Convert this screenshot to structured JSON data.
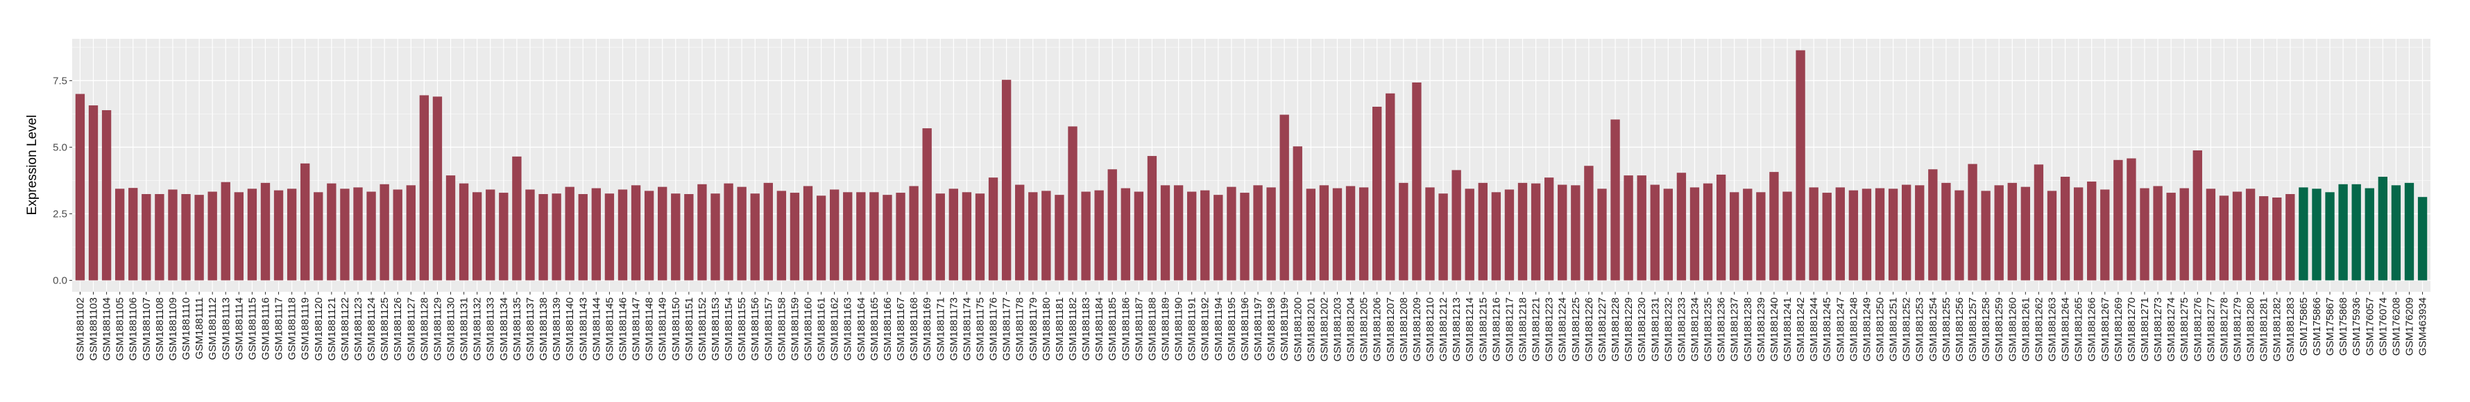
{
  "chart_data": {
    "type": "bar",
    "title": "",
    "xlabel": "",
    "ylabel": "Expression Level",
    "ylim": [
      -0.43,
      9.07
    ],
    "yticks": [
      0.0,
      2.5,
      5.0,
      7.5
    ],
    "ytick_labels": [
      "0.0",
      "2.5",
      "5.0",
      "7.5"
    ],
    "grid": true,
    "legend": "none",
    "background": "#EBEBEB",
    "series": [
      {
        "color": "#9A4150",
        "categories": [
          "GSM1881102",
          "GSM1881103",
          "GSM1881104",
          "GSM1881105",
          "GSM1881106",
          "GSM1881107",
          "GSM1881108",
          "GSM1881109",
          "GSM1881110",
          "GSM1881111",
          "GSM1881112",
          "GSM1881113",
          "GSM1881114",
          "GSM1881115",
          "GSM1881116",
          "GSM1881117",
          "GSM1881118",
          "GSM1881119",
          "GSM1881120",
          "GSM1881121",
          "GSM1881122",
          "GSM1881123",
          "GSM1881124",
          "GSM1881125",
          "GSM1881126",
          "GSM1881127",
          "GSM1881128",
          "GSM1881129",
          "GSM1881130",
          "GSM1881131",
          "GSM1881132",
          "GSM1881133",
          "GSM1881134",
          "GSM1881135",
          "GSM1881137",
          "GSM1881138",
          "GSM1881139",
          "GSM1881140",
          "GSM1881143",
          "GSM1881144",
          "GSM1881145",
          "GSM1881146",
          "GSM1881147",
          "GSM1881148",
          "GSM1881149",
          "GSM1881150",
          "GSM1881151",
          "GSM1881152",
          "GSM1881153",
          "GSM1881154",
          "GSM1881155",
          "GSM1881156",
          "GSM1881157",
          "GSM1881158",
          "GSM1881159",
          "GSM1881160",
          "GSM1881161",
          "GSM1881162",
          "GSM1881163",
          "GSM1881164",
          "GSM1881165",
          "GSM1881166",
          "GSM1881167",
          "GSM1881168",
          "GSM1881169",
          "GSM1881171",
          "GSM1881173",
          "GSM1881174",
          "GSM1881175",
          "GSM1881176",
          "GSM1881177",
          "GSM1881178",
          "GSM1881179",
          "GSM1881180",
          "GSM1881181",
          "GSM1881182",
          "GSM1881183",
          "GSM1881184",
          "GSM1881185",
          "GSM1881186",
          "GSM1881187",
          "GSM1881188",
          "GSM1881189",
          "GSM1881190",
          "GSM1881191",
          "GSM1881192",
          "GSM1881194",
          "GSM1881195",
          "GSM1881196",
          "GSM1881197",
          "GSM1881198",
          "GSM1881199",
          "GSM1881200",
          "GSM1881201",
          "GSM1881202",
          "GSM1881203",
          "GSM1881204",
          "GSM1881205",
          "GSM1881206",
          "GSM1881207",
          "GSM1881208",
          "GSM1881209",
          "GSM1881210",
          "GSM1881212",
          "GSM1881213",
          "GSM1881214",
          "GSM1881215",
          "GSM1881216",
          "GSM1881217",
          "GSM1881218",
          "GSM1881221",
          "GSM1881223",
          "GSM1881224",
          "GSM1881225",
          "GSM1881226",
          "GSM1881227",
          "GSM1881228",
          "GSM1881229",
          "GSM1881230",
          "GSM1881231",
          "GSM1881232",
          "GSM1881233",
          "GSM1881234",
          "GSM1881235",
          "GSM1881236",
          "GSM1881237",
          "GSM1881238",
          "GSM1881239",
          "GSM1881240",
          "GSM1881241",
          "GSM1881242",
          "GSM1881244",
          "GSM1881245",
          "GSM1881247",
          "GSM1881248",
          "GSM1881249",
          "GSM1881250",
          "GSM1881251",
          "GSM1881252",
          "GSM1881253",
          "GSM1881254",
          "GSM1881255",
          "GSM1881256",
          "GSM1881257",
          "GSM1881258",
          "GSM1881259",
          "GSM1881260",
          "GSM1881261",
          "GSM1881262",
          "GSM1881263",
          "GSM1881264",
          "GSM1881265",
          "GSM1881266",
          "GSM1881267",
          "GSM1881269",
          "GSM1881270",
          "GSM1881271",
          "GSM1881273",
          "GSM1881274",
          "GSM1881275",
          "GSM1881276",
          "GSM1881277",
          "GSM1881278",
          "GSM1881279",
          "GSM1881280",
          "GSM1881281",
          "GSM1881282",
          "GSM1881283"
        ],
        "values": [
          7.0,
          6.57,
          6.39,
          3.44,
          3.47,
          3.24,
          3.24,
          3.41,
          3.24,
          3.21,
          3.33,
          3.69,
          3.31,
          3.44,
          3.66,
          3.38,
          3.44,
          4.39,
          3.31,
          3.64,
          3.44,
          3.49,
          3.33,
          3.61,
          3.41,
          3.57,
          6.95,
          6.9,
          3.94,
          3.64,
          3.31,
          3.41,
          3.29,
          4.65,
          3.41,
          3.24,
          3.26,
          3.51,
          3.24,
          3.46,
          3.26,
          3.41,
          3.57,
          3.36,
          3.51,
          3.26,
          3.24,
          3.61,
          3.26,
          3.64,
          3.51,
          3.26,
          3.66,
          3.36,
          3.29,
          3.54,
          3.18,
          3.41,
          3.31,
          3.31,
          3.31,
          3.21,
          3.29,
          3.54,
          5.71,
          3.26,
          3.44,
          3.31,
          3.26,
          3.86,
          7.53,
          3.59,
          3.31,
          3.36,
          3.21,
          5.78,
          3.33,
          3.38,
          4.17,
          3.46,
          3.33,
          4.67,
          3.57,
          3.57,
          3.33,
          3.38,
          3.21,
          3.51,
          3.29,
          3.57,
          3.49,
          6.22,
          5.03,
          3.44,
          3.57,
          3.46,
          3.54,
          3.49,
          6.52,
          7.02,
          3.66,
          7.43,
          3.49,
          3.26,
          4.14,
          3.44,
          3.66,
          3.31,
          3.41,
          3.66,
          3.64,
          3.86,
          3.59,
          3.57,
          4.3,
          3.44,
          6.04,
          3.94,
          3.94,
          3.59,
          3.44,
          4.04,
          3.49,
          3.64,
          3.97,
          3.31,
          3.44,
          3.31,
          4.07,
          3.33,
          8.64,
          3.49,
          3.29,
          3.49,
          3.38,
          3.44,
          3.46,
          3.44,
          3.59,
          3.57,
          4.17,
          3.66,
          3.38,
          4.37,
          3.36,
          3.57,
          3.66,
          3.51,
          4.35,
          3.36,
          3.89,
          3.49,
          3.71,
          3.41,
          4.52,
          4.58,
          3.46,
          3.54,
          3.29,
          3.46,
          4.88,
          3.44,
          3.18,
          3.33,
          3.44,
          3.16,
          3.11,
          3.24
        ]
      },
      {
        "color": "#05684A",
        "categories": [
          "GSM175865",
          "GSM175866",
          "GSM175867",
          "GSM175868",
          "GSM175936",
          "GSM176057",
          "GSM176074",
          "GSM176208",
          "GSM176209",
          "GSM463934"
        ],
        "values": [
          3.49,
          3.44,
          3.31,
          3.61,
          3.61,
          3.46,
          3.89,
          3.57,
          3.66,
          3.13
        ]
      }
    ]
  }
}
